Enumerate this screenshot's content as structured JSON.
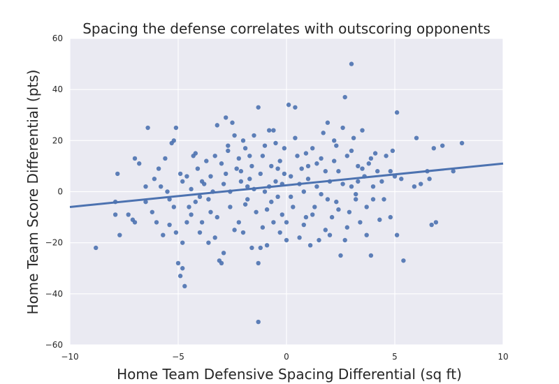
{
  "chart_data": {
    "type": "scatter",
    "title": "Spacing the defense correlates with outscoring opponents",
    "xlabel": "Home Team Defensive Spacing Differential (sq ft)",
    "ylabel": "Home Team Score Differential (pts)",
    "xlim": [
      -10,
      10
    ],
    "ylim": [
      -60,
      60
    ],
    "xticks": [
      -10,
      -5,
      0,
      5,
      10
    ],
    "yticks": [
      -60,
      -40,
      -20,
      0,
      20,
      40,
      60
    ],
    "xtick_labels": [
      "−10",
      "−5",
      "0",
      "5",
      "10"
    ],
    "ytick_labels": [
      "−60",
      "−40",
      "−20",
      "0",
      "20",
      "40",
      "60"
    ],
    "grid": true,
    "colors": {
      "background": "#eaeaf2",
      "grid": "#ffffff",
      "points": "#4c72b0",
      "line": "#4c72b0"
    },
    "regression_line": {
      "x": [
        -10,
        10
      ],
      "y": [
        -6,
        11
      ]
    },
    "points": [
      {
        "x": -8.8,
        "y": -22
      },
      {
        "x": -7.9,
        "y": -4
      },
      {
        "x": -7.8,
        "y": 7
      },
      {
        "x": -7.7,
        "y": -17
      },
      {
        "x": -7.9,
        "y": -9
      },
      {
        "x": -7.3,
        "y": -9
      },
      {
        "x": -7.1,
        "y": -11
      },
      {
        "x": -7.0,
        "y": -12
      },
      {
        "x": -7.0,
        "y": 13
      },
      {
        "x": -6.5,
        "y": -4
      },
      {
        "x": -6.4,
        "y": 25
      },
      {
        "x": -6.5,
        "y": 2
      },
      {
        "x": -6.1,
        "y": 5
      },
      {
        "x": -6.0,
        "y": -12
      },
      {
        "x": -5.9,
        "y": 9
      },
      {
        "x": -5.8,
        "y": 2
      },
      {
        "x": -5.6,
        "y": 13
      },
      {
        "x": -5.7,
        "y": -17
      },
      {
        "x": -5.5,
        "y": 0
      },
      {
        "x": -5.3,
        "y": 19
      },
      {
        "x": -5.2,
        "y": 20
      },
      {
        "x": -5.4,
        "y": -3
      },
      {
        "x": -5.2,
        "y": -6
      },
      {
        "x": -5.1,
        "y": -16
      },
      {
        "x": -5.1,
        "y": 25
      },
      {
        "x": -5.0,
        "y": -28
      },
      {
        "x": -4.9,
        "y": -33
      },
      {
        "x": -4.8,
        "y": -30
      },
      {
        "x": -4.7,
        "y": -37
      },
      {
        "x": -4.8,
        "y": -20
      },
      {
        "x": -4.9,
        "y": 7
      },
      {
        "x": -4.8,
        "y": 4
      },
      {
        "x": -4.6,
        "y": -12
      },
      {
        "x": -4.5,
        "y": -6
      },
      {
        "x": -4.4,
        "y": -9
      },
      {
        "x": -4.3,
        "y": 14
      },
      {
        "x": -4.2,
        "y": 15
      },
      {
        "x": -4.1,
        "y": 9
      },
      {
        "x": -4.0,
        "y": -2
      },
      {
        "x": -4.0,
        "y": -16
      },
      {
        "x": -3.9,
        "y": -12
      },
      {
        "x": -3.8,
        "y": 3
      },
      {
        "x": -3.7,
        "y": 12
      },
      {
        "x": -3.6,
        "y": -3
      },
      {
        "x": -3.6,
        "y": -20
      },
      {
        "x": -3.5,
        "y": 6
      },
      {
        "x": -3.4,
        "y": 0
      },
      {
        "x": -3.3,
        "y": 14
      },
      {
        "x": -3.2,
        "y": 26
      },
      {
        "x": -3.2,
        "y": -10
      },
      {
        "x": -3.1,
        "y": -27
      },
      {
        "x": -3.0,
        "y": -28
      },
      {
        "x": -2.9,
        "y": -24
      },
      {
        "x": -2.9,
        "y": 3
      },
      {
        "x": -2.8,
        "y": 29
      },
      {
        "x": -2.8,
        "y": 7
      },
      {
        "x": -2.7,
        "y": 16
      },
      {
        "x": -2.6,
        "y": -6
      },
      {
        "x": -2.5,
        "y": 27
      },
      {
        "x": -2.4,
        "y": 22
      },
      {
        "x": -2.3,
        "y": 9
      },
      {
        "x": -2.2,
        "y": 13
      },
      {
        "x": -2.2,
        "y": -12
      },
      {
        "x": -2.1,
        "y": 4
      },
      {
        "x": -2.0,
        "y": -16
      },
      {
        "x": -2.0,
        "y": 20
      },
      {
        "x": -1.9,
        "y": 17
      },
      {
        "x": -1.8,
        "y": -3
      },
      {
        "x": -1.8,
        "y": 2
      },
      {
        "x": -1.7,
        "y": 5
      },
      {
        "x": -1.6,
        "y": -22
      },
      {
        "x": -1.6,
        "y": 10
      },
      {
        "x": -1.5,
        "y": 22
      },
      {
        "x": -1.4,
        "y": -8
      },
      {
        "x": -1.3,
        "y": 33
      },
      {
        "x": -1.3,
        "y": -28
      },
      {
        "x": -1.3,
        "y": -51
      },
      {
        "x": -1.2,
        "y": -22
      },
      {
        "x": -1.1,
        "y": 14
      },
      {
        "x": -1.0,
        "y": 18
      },
      {
        "x": -1.0,
        "y": 0
      },
      {
        "x": -0.9,
        "y": -7
      },
      {
        "x": -0.9,
        "y": -21
      },
      {
        "x": -0.8,
        "y": 24
      },
      {
        "x": -0.7,
        "y": 10
      },
      {
        "x": -0.6,
        "y": -12
      },
      {
        "x": -0.6,
        "y": 24
      },
      {
        "x": -0.5,
        "y": 4
      },
      {
        "x": -0.4,
        "y": -2
      },
      {
        "x": -0.3,
        "y": 12
      },
      {
        "x": -0.2,
        "y": -9
      },
      {
        "x": -0.2,
        "y": 3
      },
      {
        "x": -0.1,
        "y": 17
      },
      {
        "x": 0.0,
        "y": -12
      },
      {
        "x": 0.0,
        "y": -19
      },
      {
        "x": 0.1,
        "y": 34
      },
      {
        "x": 0.2,
        "y": 6
      },
      {
        "x": 0.3,
        "y": -6
      },
      {
        "x": 0.4,
        "y": 33
      },
      {
        "x": 0.5,
        "y": 14
      },
      {
        "x": 0.6,
        "y": -18
      },
      {
        "x": 0.7,
        "y": 9
      },
      {
        "x": 0.8,
        "y": 0
      },
      {
        "x": 0.9,
        "y": -10
      },
      {
        "x": 1.0,
        "y": 10
      },
      {
        "x": 1.1,
        "y": -21
      },
      {
        "x": 1.2,
        "y": 17
      },
      {
        "x": 1.3,
        "y": -6
      },
      {
        "x": 1.4,
        "y": 2
      },
      {
        "x": 1.5,
        "y": -19
      },
      {
        "x": 1.6,
        "y": 13
      },
      {
        "x": 1.7,
        "y": 23
      },
      {
        "x": 1.8,
        "y": -15
      },
      {
        "x": 1.9,
        "y": 27
      },
      {
        "x": 2.0,
        "y": 4
      },
      {
        "x": 2.1,
        "y": -10
      },
      {
        "x": 2.2,
        "y": 20
      },
      {
        "x": 2.3,
        "y": -4
      },
      {
        "x": 2.4,
        "y": 8
      },
      {
        "x": 2.5,
        "y": -25
      },
      {
        "x": 2.6,
        "y": 25
      },
      {
        "x": 2.7,
        "y": -19
      },
      {
        "x": 2.7,
        "y": 37
      },
      {
        "x": 2.8,
        "y": 14
      },
      {
        "x": 2.9,
        "y": -8
      },
      {
        "x": 3.0,
        "y": 50
      },
      {
        "x": 3.0,
        "y": 2
      },
      {
        "x": 3.1,
        "y": 21
      },
      {
        "x": 3.2,
        "y": -3
      },
      {
        "x": 3.3,
        "y": 10
      },
      {
        "x": 3.4,
        "y": -12
      },
      {
        "x": 3.5,
        "y": 24
      },
      {
        "x": 3.6,
        "y": 6
      },
      {
        "x": 3.7,
        "y": -17
      },
      {
        "x": 3.8,
        "y": 11
      },
      {
        "x": 3.9,
        "y": -25
      },
      {
        "x": 3.9,
        "y": 13
      },
      {
        "x": 4.0,
        "y": -3
      },
      {
        "x": 4.1,
        "y": 15
      },
      {
        "x": 4.2,
        "y": 8
      },
      {
        "x": 4.3,
        "y": -11
      },
      {
        "x": 4.4,
        "y": 4
      },
      {
        "x": 4.6,
        "y": 14
      },
      {
        "x": 4.8,
        "y": -10
      },
      {
        "x": 4.9,
        "y": 16
      },
      {
        "x": 5.0,
        "y": 6
      },
      {
        "x": 5.1,
        "y": -17
      },
      {
        "x": 5.1,
        "y": 31
      },
      {
        "x": 5.3,
        "y": 5
      },
      {
        "x": 5.4,
        "y": -27
      },
      {
        "x": 5.9,
        "y": 2
      },
      {
        "x": 6.0,
        "y": 21
      },
      {
        "x": 6.2,
        "y": 3
      },
      {
        "x": 6.5,
        "y": 8
      },
      {
        "x": 6.6,
        "y": 5
      },
      {
        "x": 6.7,
        "y": -13
      },
      {
        "x": 6.8,
        "y": 17
      },
      {
        "x": 6.9,
        "y": -12
      },
      {
        "x": 7.2,
        "y": 18
      },
      {
        "x": 7.7,
        "y": 8
      },
      {
        "x": 8.1,
        "y": 19
      },
      {
        "x": -6.8,
        "y": 11
      },
      {
        "x": -6.2,
        "y": -8
      },
      {
        "x": -4.4,
        "y": 1
      },
      {
        "x": -4.2,
        "y": -4
      },
      {
        "x": -3.9,
        "y": 4
      },
      {
        "x": -3.5,
        "y": -8
      },
      {
        "x": -3.0,
        "y": 11
      },
      {
        "x": -2.6,
        "y": 0
      },
      {
        "x": -2.4,
        "y": -15
      },
      {
        "x": -2.1,
        "y": 8
      },
      {
        "x": -1.9,
        "y": -5
      },
      {
        "x": -1.7,
        "y": 14
      },
      {
        "x": -1.5,
        "y": 1
      },
      {
        "x": -1.2,
        "y": 7
      },
      {
        "x": -1.1,
        "y": -14
      },
      {
        "x": -0.8,
        "y": 2
      },
      {
        "x": -0.7,
        "y": -4
      },
      {
        "x": -0.5,
        "y": 19
      },
      {
        "x": -0.3,
        "y": -16
      },
      {
        "x": -0.1,
        "y": 7
      },
      {
        "x": 0.2,
        "y": -2
      },
      {
        "x": 0.4,
        "y": 21
      },
      {
        "x": 0.6,
        "y": 3
      },
      {
        "x": 0.8,
        "y": -13
      },
      {
        "x": 1.0,
        "y": 5
      },
      {
        "x": 1.2,
        "y": -9
      },
      {
        "x": 1.4,
        "y": 11
      },
      {
        "x": 1.6,
        "y": -1
      },
      {
        "x": 1.8,
        "y": 8
      },
      {
        "x": 2.0,
        "y": -17
      },
      {
        "x": 2.2,
        "y": 12
      },
      {
        "x": 2.4,
        "y": -7
      },
      {
        "x": 2.6,
        "y": 3
      },
      {
        "x": 2.8,
        "y": -14
      },
      {
        "x": 3.0,
        "y": 16
      },
      {
        "x": 3.2,
        "y": -1
      },
      {
        "x": 3.5,
        "y": 9
      },
      {
        "x": 3.7,
        "y": -6
      },
      {
        "x": 4.0,
        "y": 2
      },
      {
        "x": 4.5,
        "y": -3
      },
      {
        "x": -5.4,
        "y": -13
      },
      {
        "x": -4.6,
        "y": 6
      },
      {
        "x": -3.3,
        "y": -18
      },
      {
        "x": -2.7,
        "y": 18
      },
      {
        "x": -0.4,
        "y": 9
      },
      {
        "x": 0.9,
        "y": 15
      },
      {
        "x": 1.9,
        "y": -3
      },
      {
        "x": 2.3,
        "y": 18
      },
      {
        "x": 3.3,
        "y": 4
      },
      {
        "x": 4.8,
        "y": 8
      }
    ]
  }
}
